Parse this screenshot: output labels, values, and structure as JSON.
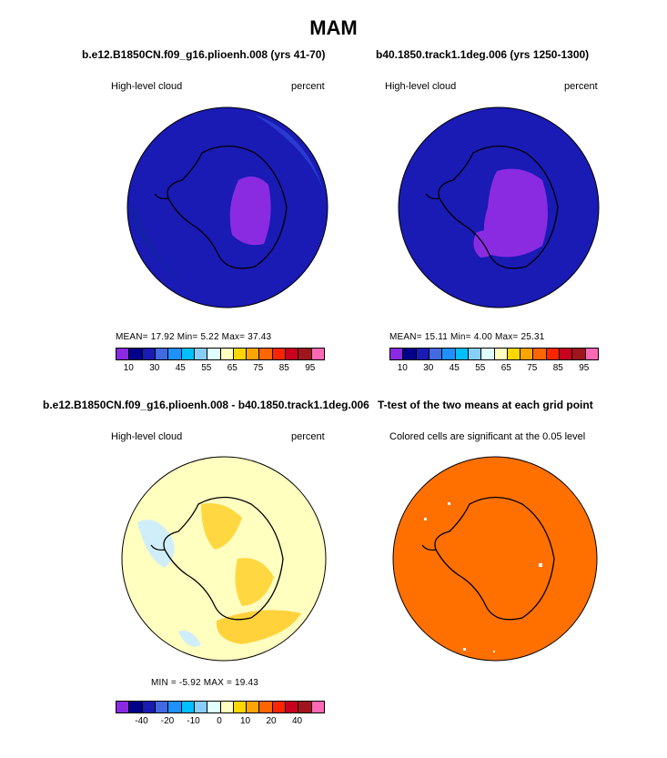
{
  "title": "MAM",
  "panels": [
    {
      "title": "b.e12.B1850CN.f09_g16.plioenh.008 (yrs 41-70)",
      "variable": "High-level cloud",
      "units": "percent",
      "stats": "MEAN=   17.92  Min=    5.22  Max=   37.43",
      "ticks": [
        "10",
        "30",
        "45",
        "55",
        "65",
        "75",
        "85",
        "95"
      ]
    },
    {
      "title": "b40.1850.track1.1deg.006 (yrs 1250-1300)",
      "variable": "High-level cloud",
      "units": "percent",
      "stats": "MEAN=   15.11  Min=    4.00  Max=   25.31",
      "ticks": [
        "10",
        "30",
        "45",
        "55",
        "65",
        "75",
        "85",
        "95"
      ]
    },
    {
      "title": "b.e12.B1850CN.f09_g16.plioenh.008 - b40.1850.track1.1deg.006",
      "variable": "High-level cloud",
      "units": "percent",
      "stats": "MIN =   -5.92  MAX =   19.43",
      "ticks": [
        "-40",
        "-20",
        "-10",
        "0",
        "10",
        "20",
        "40"
      ]
    },
    {
      "title": "T-test of the two means at each grid point",
      "caption": "Colored cells are significant at the 0.05 level"
    }
  ],
  "colors": {
    "abs_scale": [
      "#8a2be2",
      "#00008b",
      "#1a1ab4",
      "#4169e1",
      "#1e90ff",
      "#00bfff",
      "#87cefa",
      "#e0ffff",
      "#ffffc0",
      "#ffd700",
      "#ffa500",
      "#ff6600",
      "#ff2400",
      "#c8001e",
      "#a0141e",
      "#ff69b4"
    ],
    "diff_scale": [
      "#8a2be2",
      "#00008b",
      "#1a1ab4",
      "#4169e1",
      "#1e90ff",
      "#00bfff",
      "#87cefa",
      "#e0ffff",
      "#ffffc0",
      "#ffd700",
      "#ffa500",
      "#ff6600",
      "#ff2400",
      "#c8001e",
      "#a0141e",
      "#ff69b4"
    ],
    "ttest_fill": "#ff7000"
  }
}
